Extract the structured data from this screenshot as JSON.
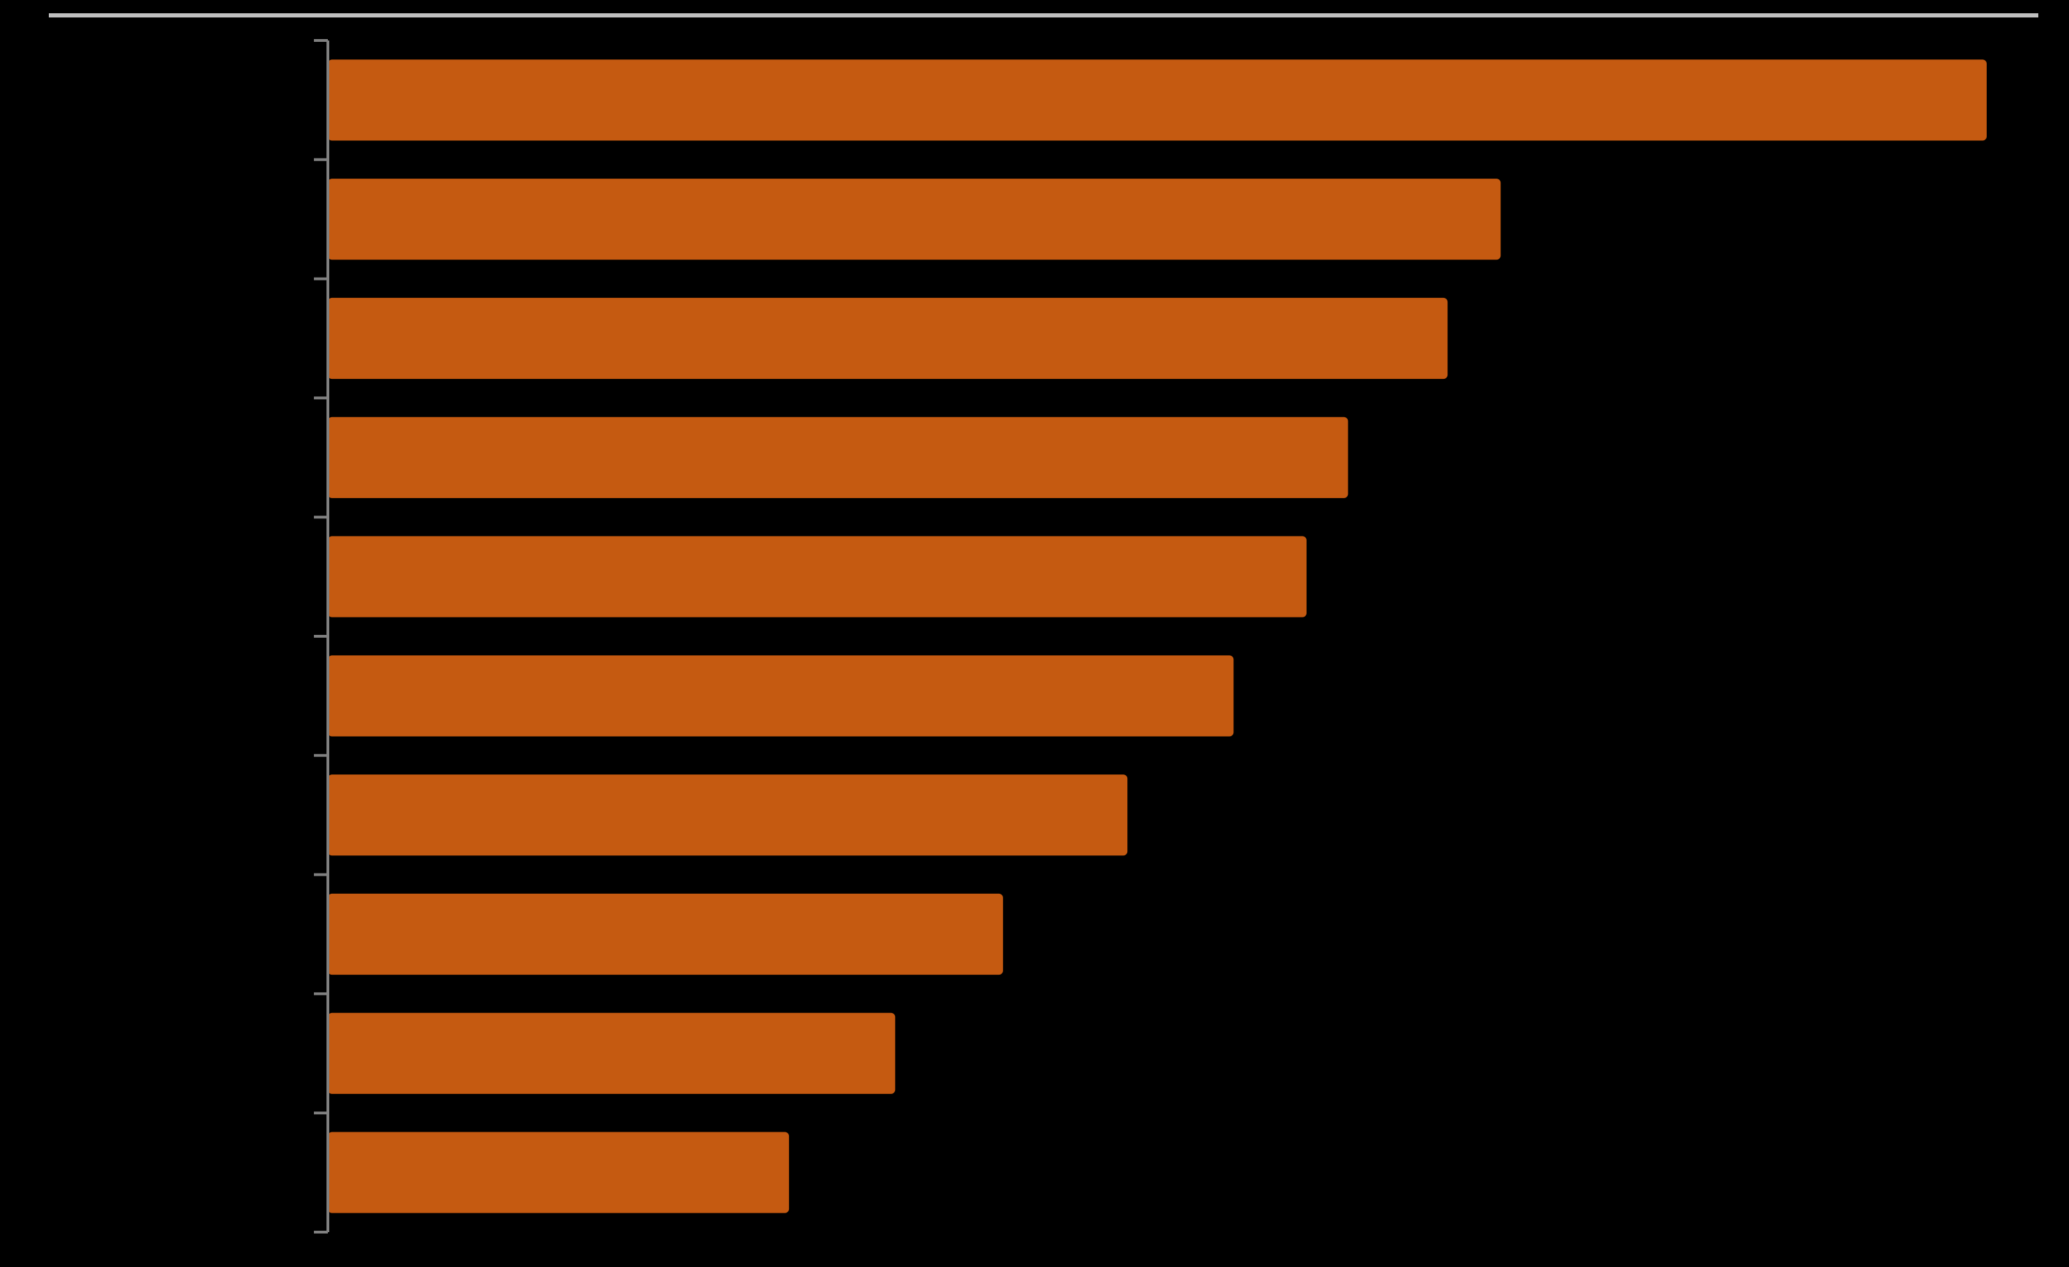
{
  "chart_data": {
    "type": "bar",
    "orientation": "horizontal",
    "categories": [
      "",
      "",
      "",
      "",
      "",
      "",
      "",
      "",
      "",
      ""
    ],
    "values": [
      100,
      70.7,
      67.5,
      61.5,
      59,
      54.6,
      48.2,
      40.7,
      34.2,
      27.8
    ],
    "title": "",
    "xlabel": "",
    "ylabel": "",
    "xlim": [
      0,
      100
    ],
    "grid": false,
    "legend": "none",
    "colors": {
      "background": "#000000",
      "bar": "#c55a11",
      "axis": "#808080",
      "top_rule": "#bfbfbf"
    }
  }
}
